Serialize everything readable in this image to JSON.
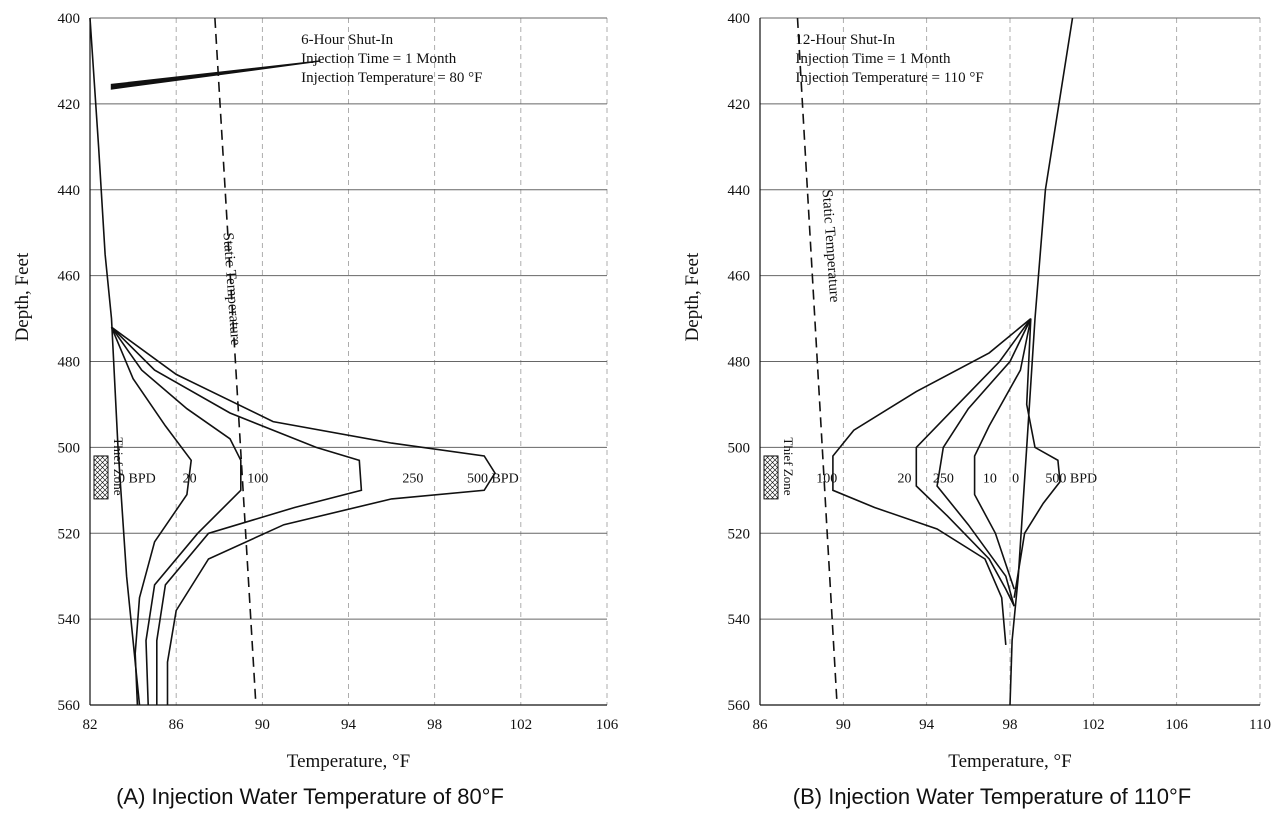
{
  "chart_data": [
    {
      "type": "line",
      "caption": "(A) Injection Water Temperature of 80°F",
      "xlabel": "Temperature, °F",
      "ylabel": "Depth, Feet",
      "xlim": [
        82,
        106
      ],
      "ylim": [
        400,
        560
      ],
      "y_inverted": true,
      "xticks": [
        82,
        86,
        90,
        94,
        98,
        102,
        106
      ],
      "yticks": [
        400,
        420,
        440,
        460,
        480,
        500,
        520,
        540,
        560
      ],
      "grid": true,
      "annotations": [
        "6-Hour Shut-In",
        "Injection Time = 1 Month",
        "Injection Temperature = 80 °F"
      ],
      "thief_zone": {
        "label": "Thief Zone",
        "depth_range": [
          502,
          512
        ]
      },
      "series": [
        {
          "name": "Static Temperature",
          "style": "dashed",
          "label_at": [
            88.2,
            450
          ],
          "points": [
            [
              87.8,
              400
            ],
            [
              89.7,
              560
            ]
          ]
        },
        {
          "name": "0 BPD",
          "label_at": [
            83.3,
            507
          ],
          "points": [
            [
              82.0,
              400
            ],
            [
              82.4,
              430
            ],
            [
              82.7,
              455
            ],
            [
              83.0,
              470
            ],
            [
              83.3,
              500
            ],
            [
              83.7,
              530
            ],
            [
              84.3,
              560
            ]
          ]
        },
        {
          "name": "20",
          "label_at": [
            86.3,
            507
          ],
          "points": [
            [
              83.0,
              472
            ],
            [
              84.0,
              484
            ],
            [
              85.5,
              495
            ],
            [
              86.7,
              503
            ],
            [
              86.5,
              511
            ],
            [
              85.0,
              522
            ],
            [
              84.3,
              535
            ],
            [
              84.1,
              548
            ],
            [
              84.2,
              560
            ]
          ]
        },
        {
          "name": "100",
          "label_at": [
            89.3,
            507
          ],
          "points": [
            [
              83.0,
              472
            ],
            [
              84.4,
              482
            ],
            [
              86.5,
              491
            ],
            [
              88.5,
              498
            ],
            [
              89.0,
              503
            ],
            [
              89.0,
              510
            ],
            [
              87.0,
              520
            ],
            [
              85.0,
              532
            ],
            [
              84.6,
              545
            ],
            [
              84.7,
              560
            ]
          ]
        },
        {
          "name": "250",
          "label_at": [
            96.5,
            507
          ],
          "points": [
            [
              83.0,
              472
            ],
            [
              85.0,
              482
            ],
            [
              88.5,
              492
            ],
            [
              92.5,
              500
            ],
            [
              94.5,
              503
            ],
            [
              94.6,
              510
            ],
            [
              91.5,
              514
            ],
            [
              87.5,
              520
            ],
            [
              85.5,
              532
            ],
            [
              85.1,
              545
            ],
            [
              85.1,
              560
            ]
          ]
        },
        {
          "name": "500 BPD",
          "label_at": [
            99.5,
            507
          ],
          "points": [
            [
              83.0,
              472
            ],
            [
              86.0,
              483
            ],
            [
              90.5,
              494
            ],
            [
              96.0,
              499
            ],
            [
              100.3,
              502
            ],
            [
              100.8,
              506
            ],
            [
              100.3,
              510
            ],
            [
              96.0,
              512
            ],
            [
              91.0,
              518
            ],
            [
              87.5,
              526
            ],
            [
              86.0,
              538
            ],
            [
              85.6,
              550
            ],
            [
              85.6,
              560
            ]
          ]
        }
      ]
    },
    {
      "type": "line",
      "caption": "(B) Injection Water Temperature of 110°F",
      "xlabel": "Temperature, °F",
      "ylabel": "Depth, Feet",
      "xlim": [
        86,
        110
      ],
      "ylim": [
        400,
        560
      ],
      "y_inverted": true,
      "xticks": [
        86,
        90,
        94,
        98,
        102,
        106,
        110
      ],
      "yticks": [
        400,
        420,
        440,
        460,
        480,
        500,
        520,
        540,
        560
      ],
      "grid": true,
      "annotations": [
        "12-Hour Shut-In",
        "Injection Time = 1 Month",
        "Injection Temperature = 110 °F"
      ],
      "thief_zone": {
        "label": "Thief Zone",
        "depth_range": [
          502,
          512
        ]
      },
      "series": [
        {
          "name": "Static Temperature",
          "style": "dashed",
          "label_at": [
            89.0,
            440
          ],
          "points": [
            [
              87.8,
              400
            ],
            [
              89.7,
              560
            ]
          ]
        },
        {
          "name": "0",
          "label_at": [
            98.1,
            507
          ],
          "points": [
            [
              101.0,
              400
            ],
            [
              99.7,
              440
            ],
            [
              99.2,
              470
            ],
            [
              98.8,
              500
            ],
            [
              98.4,
              530
            ],
            [
              98.1,
              545
            ],
            [
              98.0,
              560
            ]
          ]
        },
        {
          "name": "500 BPD",
          "label_at": [
            99.7,
            507
          ],
          "points": [
            [
              99.0,
              470
            ],
            [
              98.8,
              490
            ],
            [
              99.2,
              500
            ],
            [
              100.3,
              503
            ],
            [
              100.4,
              508
            ],
            [
              99.6,
              513
            ],
            [
              98.7,
              520
            ],
            [
              98.2,
              535
            ]
          ]
        },
        {
          "name": "10",
          "label_at": [
            96.7,
            507
          ],
          "points": [
            [
              99.0,
              470
            ],
            [
              98.5,
              482
            ],
            [
              97.0,
              495
            ],
            [
              96.3,
              502
            ],
            [
              96.3,
              511
            ],
            [
              97.3,
              520
            ],
            [
              98.2,
              533
            ]
          ]
        },
        {
          "name": "250",
          "label_at": [
            94.3,
            507
          ],
          "points": [
            [
              99.0,
              470
            ],
            [
              98.0,
              480
            ],
            [
              96.0,
              491
            ],
            [
              94.8,
              500
            ],
            [
              94.5,
              509
            ],
            [
              96.0,
              518
            ],
            [
              97.8,
              530
            ],
            [
              98.2,
              537
            ]
          ]
        },
        {
          "name": "20",
          "label_at": [
            92.6,
            507
          ],
          "points": [
            [
              99.0,
              470
            ],
            [
              97.5,
              480
            ],
            [
              95.5,
              490
            ],
            [
              93.5,
              500
            ],
            [
              93.5,
              509
            ],
            [
              95.0,
              516
            ],
            [
              97.0,
              526
            ],
            [
              97.8,
              533
            ],
            [
              98.2,
              537
            ]
          ]
        },
        {
          "name": "100",
          "label_at": [
            88.7,
            507
          ],
          "points": [
            [
              99.0,
              470
            ],
            [
              97.0,
              478
            ],
            [
              93.5,
              487
            ],
            [
              90.5,
              496
            ],
            [
              89.5,
              502
            ],
            [
              89.5,
              510
            ],
            [
              91.5,
              514
            ],
            [
              94.5,
              519
            ],
            [
              96.8,
              526
            ],
            [
              97.6,
              535
            ],
            [
              97.8,
              546
            ]
          ]
        }
      ]
    }
  ]
}
